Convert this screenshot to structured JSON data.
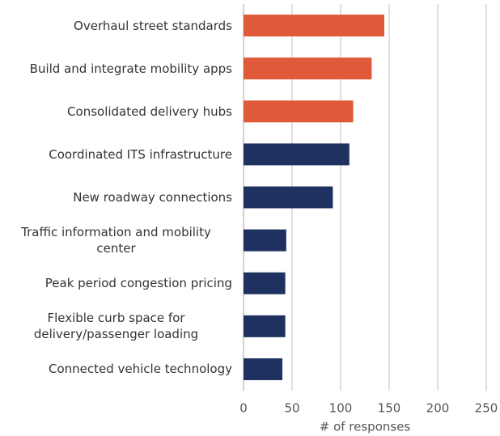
{
  "chart_data": {
    "type": "barh",
    "categories": [
      "Overhaul street standards",
      "Build and integrate mobility apps",
      "Consolidated delivery hubs",
      "Coordinated ITS infrastructure",
      "New roadway connections",
      "Traffic information and mobility center",
      "Peak period congestion pricing",
      "Flexible curb space for delivery/passenger loading",
      "Connected vehicle technology"
    ],
    "values": [
      145,
      132,
      113,
      109,
      92,
      44,
      43,
      43,
      40
    ],
    "colors": [
      "#e05a3a",
      "#e05a3a",
      "#e05a3a",
      "#1f3160",
      "#1f3160",
      "#1f3160",
      "#1f3160",
      "#1f3160",
      "#1f3160"
    ],
    "xlabel": "# of responses",
    "xlim": [
      0,
      250
    ],
    "xticks": [
      0,
      50,
      100,
      150,
      200,
      250
    ],
    "grid": true
  }
}
